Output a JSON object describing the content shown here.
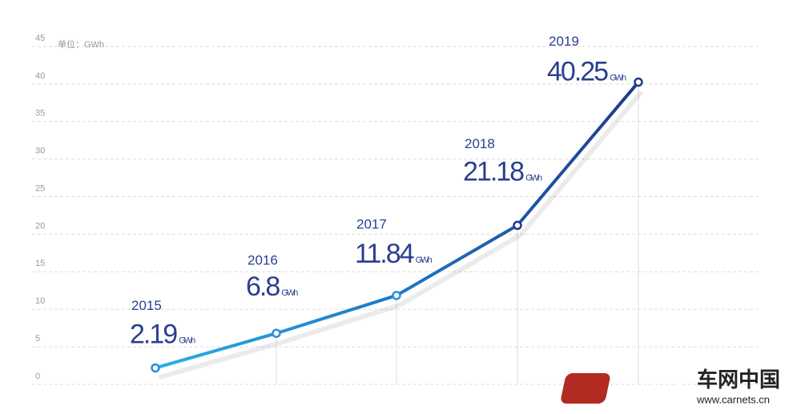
{
  "chart_data": {
    "type": "line",
    "y_label": "单位：GWh",
    "x": [
      "2015",
      "2016",
      "2017",
      "2018",
      "2019"
    ],
    "series": [
      {
        "color": "#1e3a8a",
        "values": [
          2.19,
          6.8,
          11.84,
          21.18,
          40.25
        ]
      }
    ],
    "value_unit": "GWh",
    "ylim": [
      0,
      45
    ],
    "yticks": [
      0,
      5,
      10,
      15,
      20,
      25,
      30,
      35,
      40,
      45
    ],
    "grid": true
  },
  "watermark": {
    "name": "车网中国",
    "url": "www.carnets.cn"
  }
}
